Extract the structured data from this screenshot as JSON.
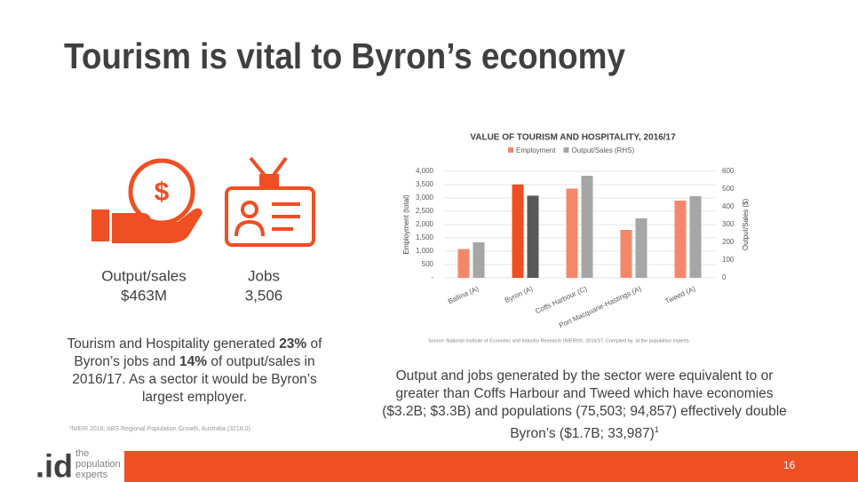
{
  "title": "Tourism is vital to Byron’s economy",
  "kpis": [
    {
      "label": "Output/sales",
      "value": "$463M"
    },
    {
      "label": "Jobs",
      "value": "3,506"
    }
  ],
  "left_text": [
    "Tourism and Hospitality generated ",
    "23%",
    " of Byron’s jobs and ",
    "14%",
    " of output/sales in 2016/17. As a sector it would be Byron’s largest employer."
  ],
  "footnote": "¹NIEIR 2016; ABS Regional Population Growth, Australia (3218.0).",
  "right_text": "Output and jobs generated by the sector were equivalent to or greater than Coffs Harbour and Tweed which have economies ($3.2B; $3.3B) and populations (75,503; 94,857) effectively double Byron’s ($1.7B; 33,987)",
  "right_text_sup": "1",
  "logo": {
    "mark": ".id",
    "line1": "the",
    "line2": "population",
    "line3": "experts"
  },
  "page_number": "16",
  "chart_data": {
    "type": "bar",
    "title": "VALUE OF TOURISM AND HOSPITALITY, 2016/17",
    "y_label": "Employment (total)",
    "y2_label": "Output/Sales ($)",
    "source": "Source: National Institute of Economic and Industry Research (NIEIR)©, 2016/17. Compiled by .id the population experts",
    "categories": [
      "Ballina (A)",
      "Byron (A)",
      "Coffs Harbour (C)",
      "Port Macquarie-Hastings (A)",
      "Tweed (A)"
    ],
    "series": [
      {
        "name": "Employment",
        "color": "#f4876a",
        "colors": [
          "#f4876a",
          "#f04e23",
          "#f4876a",
          "#f4876a",
          "#f4876a"
        ],
        "values": [
          1080,
          3506,
          3350,
          1800,
          2900
        ]
      },
      {
        "name": "Output/Sales (RHS)",
        "color": "#a6a6a6",
        "colors": [
          "#a6a6a6",
          "#595959",
          "#a6a6a6",
          "#a6a6a6",
          "#a6a6a6"
        ],
        "axis": "y2",
        "values": [
          200,
          463,
          575,
          335,
          460
        ]
      }
    ],
    "ylim": [
      0,
      4000
    ],
    "yticks": [
      {
        "value": 0,
        "label": "-"
      },
      500,
      {
        "value": 1000,
        "label": "1,000"
      },
      {
        "value": 1500,
        "label": "1,500"
      },
      {
        "value": 2000,
        "label": "2,000"
      },
      {
        "value": 2500,
        "label": "2,500"
      },
      {
        "value": 3000,
        "label": "3,000"
      },
      {
        "value": 3500,
        "label": "3,500"
      },
      {
        "value": 4000,
        "label": "4,000"
      }
    ],
    "y2lim": [
      0,
      600
    ],
    "y2ticks": [
      0,
      100,
      200,
      300,
      400,
      500,
      600
    ],
    "grid": true
  }
}
